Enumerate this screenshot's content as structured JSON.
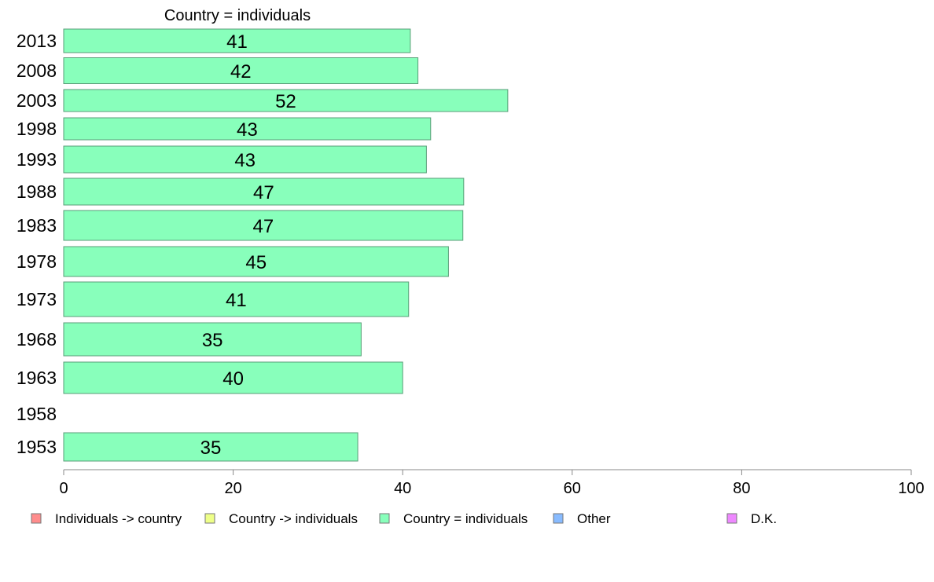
{
  "chart_data": {
    "type": "bar",
    "orientation": "horizontal",
    "title": "Country = individuals",
    "categories": [
      "2013",
      "2008",
      "2003",
      "1998",
      "1993",
      "1988",
      "1983",
      "1978",
      "1973",
      "1968",
      "1963",
      "1958",
      "1953"
    ],
    "values": [
      41,
      42,
      52,
      43,
      43,
      47,
      47,
      45,
      41,
      35,
      40,
      null,
      35
    ],
    "precise_values": [
      40.9,
      41.8,
      52.4,
      43.3,
      42.8,
      47.2,
      47.1,
      45.4,
      40.7,
      35.1,
      40.0,
      null,
      34.7
    ],
    "xlim": [
      0,
      100
    ],
    "xticks": [
      "0",
      "20",
      "40",
      "60",
      "80",
      "100"
    ],
    "bar_color": "#88ffbb",
    "bar_stroke": "#5a9e78",
    "grid": false,
    "legend": {
      "placement": "bottom",
      "items": [
        {
          "label": "Individuals -> country",
          "color": "#ff8c8c"
        },
        {
          "label": "Country -> individuals",
          "color": "#eeff88"
        },
        {
          "label": "Country = individuals",
          "color": "#88ffbb"
        },
        {
          "label": "Other",
          "color": "#88bbff"
        },
        {
          "label": "D.K.",
          "color": "#ee88ff"
        }
      ]
    }
  }
}
